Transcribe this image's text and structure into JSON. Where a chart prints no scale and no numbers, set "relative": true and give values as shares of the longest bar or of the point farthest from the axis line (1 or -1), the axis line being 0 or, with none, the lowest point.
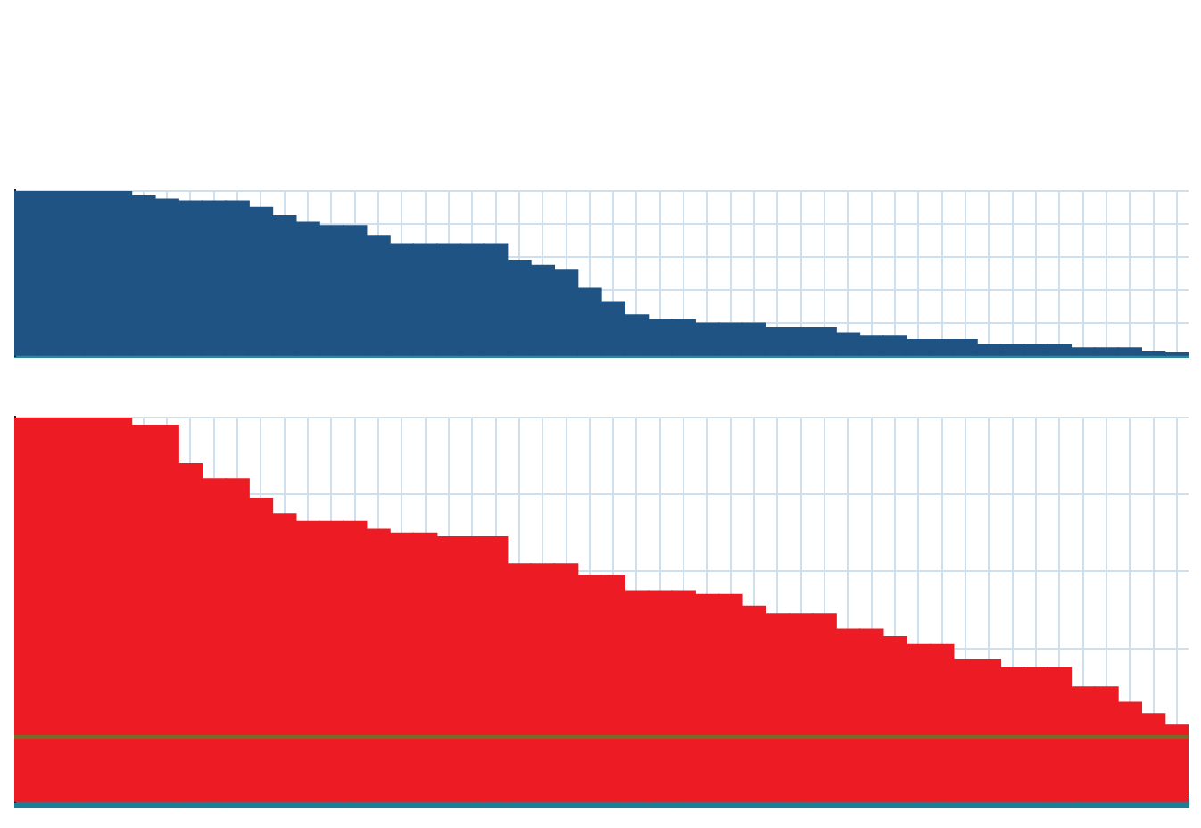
{
  "chart_data": [
    {
      "type": "bar",
      "relative": true,
      "grid": true,
      "categories": [
        null,
        null,
        null,
        null,
        null,
        null,
        null,
        null,
        null,
        null,
        null,
        null,
        null,
        null,
        null,
        null,
        null,
        null,
        null,
        null,
        null,
        null,
        null,
        null,
        null,
        null,
        null,
        null,
        null,
        null,
        null,
        null,
        null,
        null,
        null,
        null,
        null,
        null,
        null,
        null,
        null,
        null,
        null,
        null,
        null,
        null,
        null,
        null,
        null,
        null
      ],
      "series": [
        {
          "color": "#1f5384",
          "values": [
            1,
            1,
            1,
            1,
            1,
            0.97,
            0.95,
            0.94,
            0.94,
            0.94,
            0.9,
            0.85,
            0.81,
            0.79,
            0.79,
            0.73,
            0.68,
            0.68,
            0.68,
            0.68,
            0.68,
            0.58,
            0.55,
            0.52,
            0.41,
            0.33,
            0.25,
            0.22,
            0.22,
            0.2,
            0.2,
            0.2,
            0.17,
            0.17,
            0.17,
            0.14,
            0.12,
            0.12,
            0.1,
            0.1,
            0.1,
            0.07,
            0.07,
            0.07,
            0.07,
            0.05,
            0.05,
            0.05,
            0.03,
            0.02
          ]
        }
      ]
    },
    {
      "type": "bar",
      "relative": true,
      "grid": true,
      "categories": [
        null,
        null,
        null,
        null,
        null,
        null,
        null,
        null,
        null,
        null,
        null,
        null,
        null,
        null,
        null,
        null,
        null,
        null,
        null,
        null,
        null,
        null,
        null,
        null,
        null,
        null,
        null,
        null,
        null,
        null,
        null,
        null,
        null,
        null,
        null,
        null,
        null,
        null,
        null,
        null,
        null,
        null,
        null,
        null,
        null,
        null,
        null,
        null,
        null,
        null
      ],
      "series": [
        {
          "color": "#ed1c24",
          "values": [
            1,
            1,
            1,
            1,
            1,
            0.98,
            0.98,
            0.88,
            0.84,
            0.84,
            0.79,
            0.75,
            0.73,
            0.73,
            0.73,
            0.71,
            0.7,
            0.7,
            0.69,
            0.69,
            0.69,
            0.62,
            0.62,
            0.62,
            0.59,
            0.59,
            0.55,
            0.55,
            0.55,
            0.54,
            0.54,
            0.51,
            0.49,
            0.49,
            0.49,
            0.45,
            0.45,
            0.43,
            0.41,
            0.41,
            0.37,
            0.37,
            0.35,
            0.35,
            0.35,
            0.3,
            0.3,
            0.26,
            0.23,
            0.2
          ]
        }
      ],
      "ref_lines": [
        {
          "axis": "y",
          "value": 0.17,
          "color": "#7a6a2a"
        }
      ]
    }
  ]
}
